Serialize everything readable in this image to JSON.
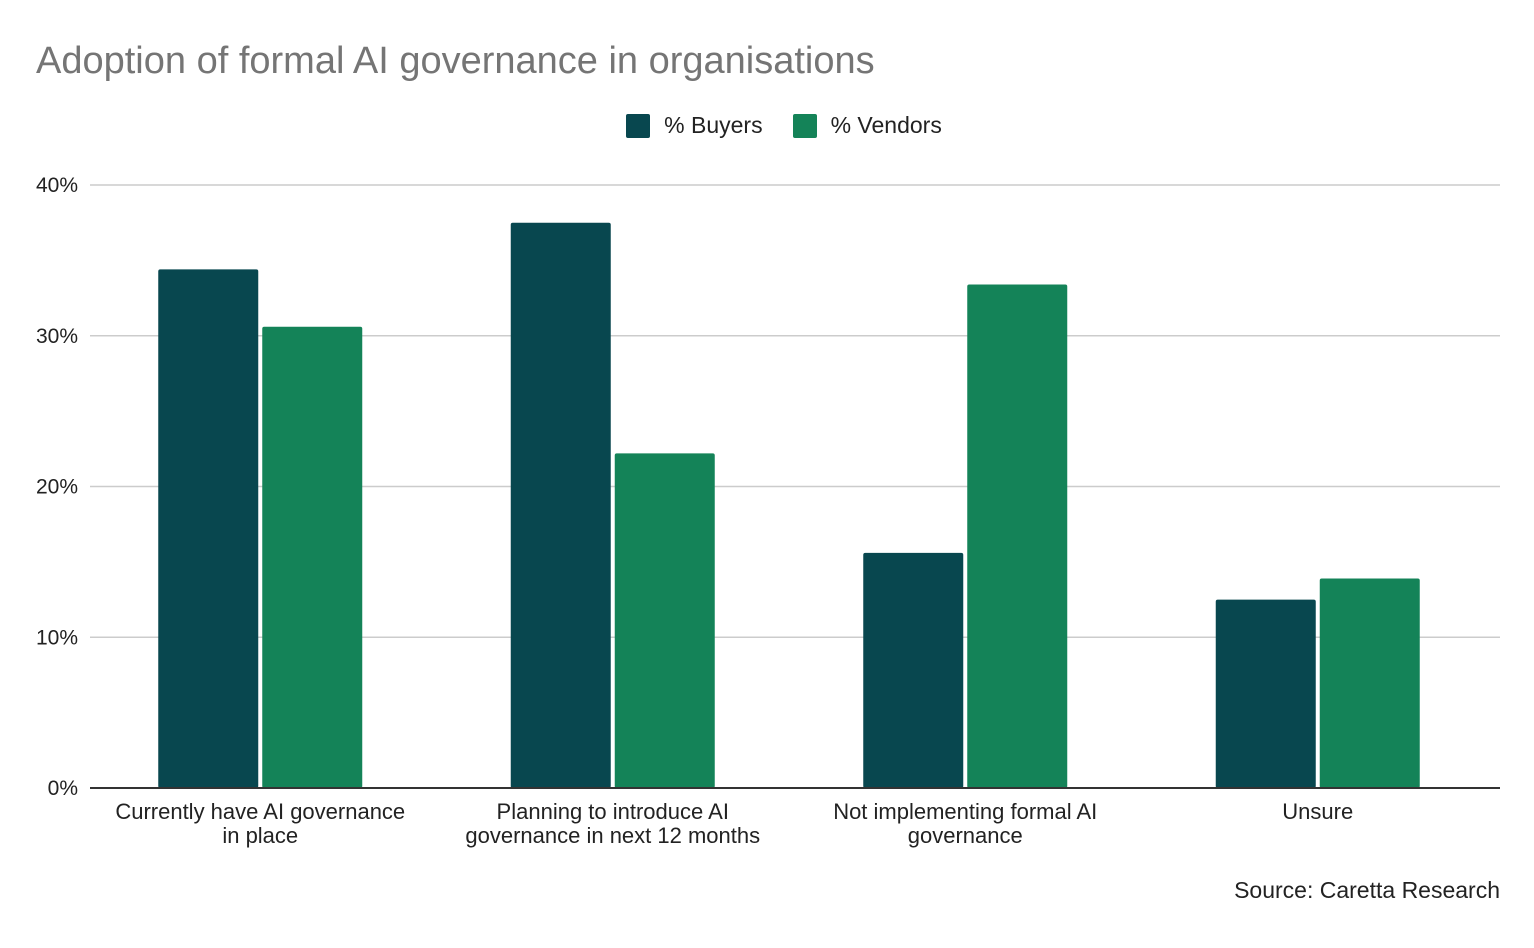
{
  "chart_data": {
    "type": "bar",
    "title": "Adoption of formal AI governance in organisations",
    "categories": [
      [
        "Currently have AI governance",
        "in place"
      ],
      [
        "Planning to introduce AI",
        "governance in next 12 months"
      ],
      [
        "Not implementing formal AI",
        "governance"
      ],
      [
        "Unsure"
      ]
    ],
    "series": [
      {
        "name": "%  Buyers",
        "color": "#08474f",
        "values": [
          34.4,
          37.5,
          15.6,
          12.5
        ]
      },
      {
        "name": "% Vendors",
        "color": "#148358",
        "values": [
          30.6,
          22.2,
          33.4,
          13.9
        ]
      }
    ],
    "y_ticks": [
      "0%",
      "10%",
      "20%",
      "30%",
      "40%"
    ],
    "ylim": [
      0,
      40
    ],
    "grid": true,
    "legend_position": "top-center",
    "source": "Source: Caretta Research"
  }
}
